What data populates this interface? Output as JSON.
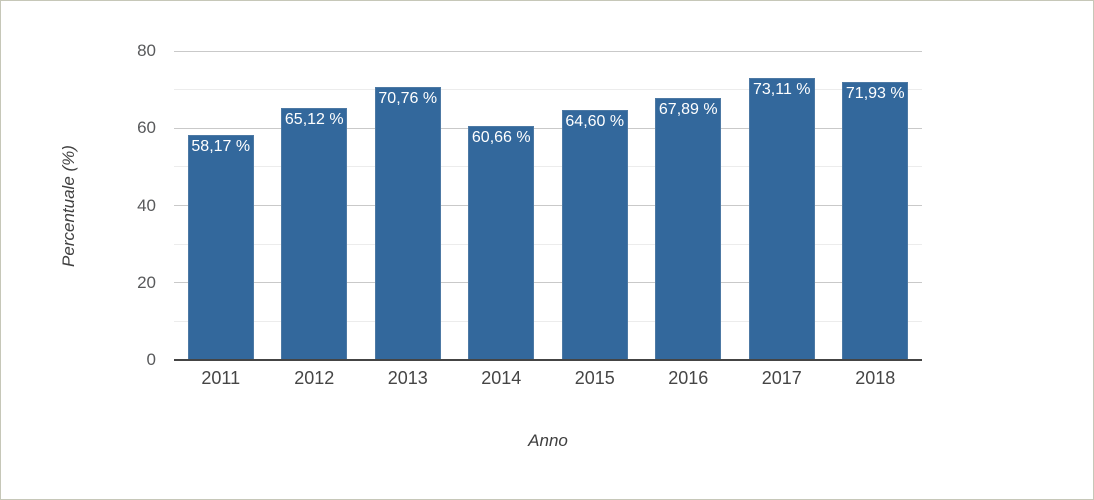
{
  "canvas": {
    "background": "#ffffff",
    "border_color": "#c6c7b8"
  },
  "chart_data": {
    "type": "bar",
    "title": "",
    "xlabel": "Anno",
    "ylabel": "Percentuale (%)",
    "categories": [
      "2011",
      "2012",
      "2013",
      "2014",
      "2015",
      "2016",
      "2017",
      "2018"
    ],
    "values": [
      58.17,
      65.12,
      70.76,
      60.66,
      64.6,
      67.89,
      73.11,
      71.93
    ],
    "value_labels": [
      "58,17 %",
      "65,12 %",
      "70,76 %",
      "60,66 %",
      "64,60 %",
      "67,89 %",
      "73,11 %",
      "71,93 %"
    ],
    "ylim": [
      0,
      80
    ],
    "y_major_ticks": [
      0,
      20,
      40,
      60,
      80
    ],
    "y_gridline_step": 10,
    "grid": true,
    "legend_position": "none",
    "colors": {
      "bar_fill": "#33689c",
      "bar_border": "#4d79a4",
      "value_label": "#ffffff",
      "major_grid": "#c9c9c9",
      "minor_grid": "#ececec",
      "axis_line": "#444444",
      "y_tick_label": "#58595b",
      "x_tick_label": "#454545",
      "axis_title": "#3f3f3f"
    }
  }
}
